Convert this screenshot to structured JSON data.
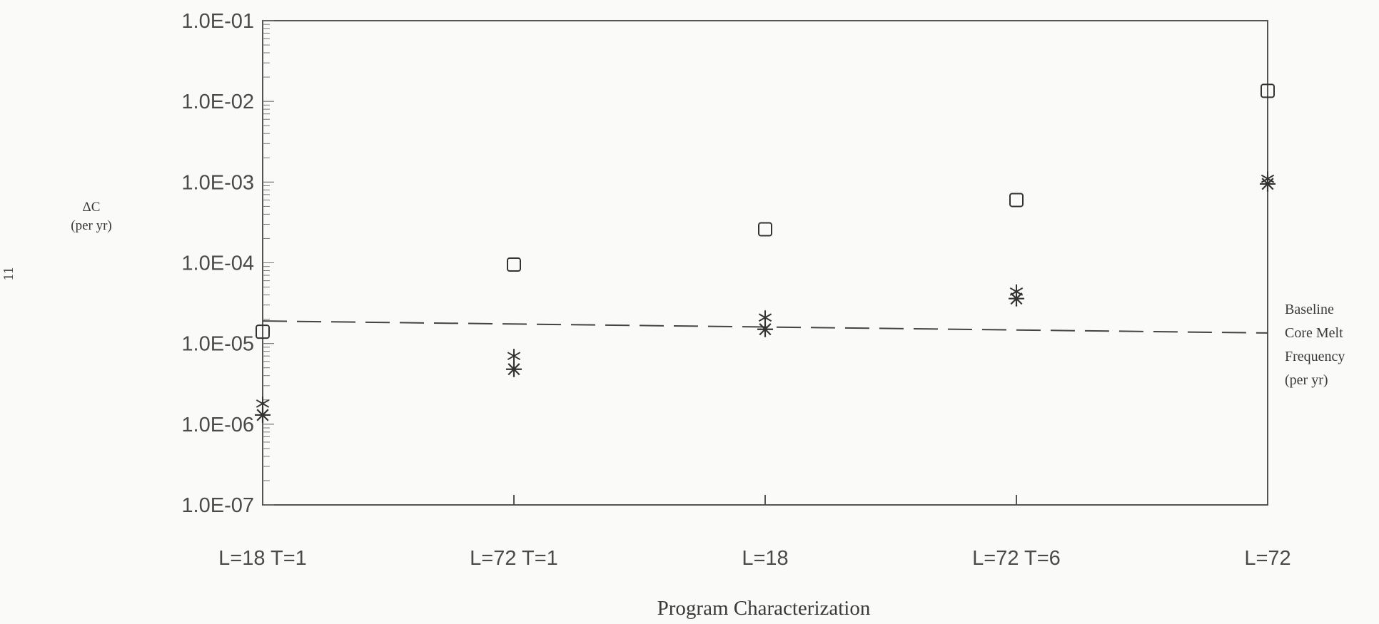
{
  "chart_data": {
    "type": "scatter",
    "title": "",
    "xlabel": "Program Characterization",
    "ylabel": "ΔC",
    "ylabel_unit": "(per yr)",
    "side_mark": "11",
    "y_scale": "log",
    "ylim": [
      1e-07,
      0.1
    ],
    "y_ticks": [
      "1.0E-01",
      "1.0E-02",
      "1.0E-03",
      "1.0E-04",
      "1.0E-05",
      "1.0E-06",
      "1.0E-07"
    ],
    "categories": [
      "L=18 T=1",
      "L=72 T=1",
      "L=18",
      "L=72 T=6",
      "L=72"
    ],
    "grid": false,
    "series": [
      {
        "marker": "square",
        "values": [
          1.4e-05,
          9.5e-05,
          0.00026,
          0.0006,
          0.0135
        ]
      },
      {
        "marker": "star",
        "values": [
          1.8e-06,
          7e-06,
          2.1e-05,
          4.4e-05,
          0.0011
        ]
      },
      {
        "marker": "asterisk",
        "values": [
          1.3e-06,
          4.8e-06,
          1.5e-05,
          3.6e-05,
          0.00095
        ]
      }
    ],
    "reference_line": {
      "y_start": 1.9e-05,
      "y_end": 1.35e-05,
      "style": "dashed",
      "label": [
        "Baseline",
        "Core Melt",
        "Frequency",
        "(per yr)"
      ]
    }
  }
}
